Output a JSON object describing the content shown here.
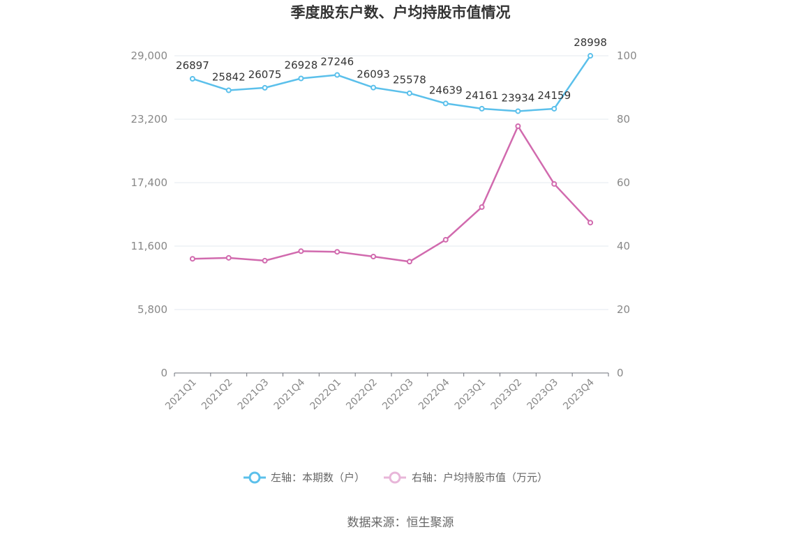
{
  "chart_data": {
    "type": "line",
    "title": "季度股东户数、户均持股市值情况",
    "categories": [
      "2021Q1",
      "2021Q2",
      "2021Q3",
      "2021Q4",
      "2022Q1",
      "2022Q2",
      "2022Q3",
      "2022Q4",
      "2023Q1",
      "2023Q2",
      "2023Q3",
      "2023Q4"
    ],
    "left_axis": {
      "ylim": [
        0,
        29000
      ],
      "ticks": [
        0,
        5800,
        11600,
        17400,
        23200,
        29000
      ],
      "tick_labels": [
        "0",
        "5,800",
        "11,600",
        "17,400",
        "23,200",
        "29,000"
      ]
    },
    "right_axis": {
      "ylim": [
        0,
        100
      ],
      "ticks": [
        0,
        20,
        40,
        60,
        80,
        100
      ],
      "tick_labels": [
        "0",
        "20",
        "40",
        "60",
        "80",
        "100"
      ]
    },
    "series": [
      {
        "name": "左轴：本期数（户）",
        "axis": "left",
        "color": "#5bc0eb",
        "values": [
          26897,
          25842,
          26075,
          26928,
          27246,
          26093,
          25578,
          24639,
          24161,
          23934,
          24159,
          28998
        ],
        "labels": [
          "26897",
          "25842",
          "26075",
          "26928",
          "27246",
          "26093",
          "25578",
          "24639",
          "24161",
          "23934",
          "24159",
          "28998"
        ]
      },
      {
        "name": "右轴：户均持股市值（万元）",
        "axis": "right",
        "color": "#d16aae",
        "values": [
          36.0,
          36.3,
          35.4,
          38.4,
          38.2,
          36.7,
          35.1,
          42.0,
          52.3,
          77.8,
          59.6,
          47.4
        ]
      }
    ],
    "grid": true,
    "legend_position": "bottom"
  },
  "source": "数据来源：恒生聚源"
}
